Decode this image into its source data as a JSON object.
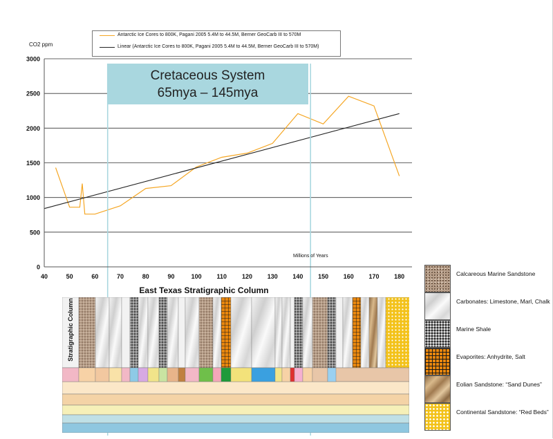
{
  "legend": {
    "series_1": "Antarctic Ice Cores to 800K, Pagani 2005 5.4M to 44.5M, Berner GeoCarb III to 570M",
    "series_2": "Linear (Antarctic Ice Cores to 800K, Pagani 2005 5.4M to 44.5M, Berner GeoCarb III to 570M)"
  },
  "cretaceous": {
    "line1": "Cretaceous System",
    "line2": "65mya – 145mya",
    "color": "#a9d7df"
  },
  "strat": {
    "title": "East Texas Stratigraphic Column",
    "ylabel": "Stratigraphic Column"
  },
  "key": [
    {
      "label": "Calcareous Marine Sandstone",
      "icon": "calcareous-sandstone-swatch",
      "cls": "sw-calc"
    },
    {
      "label": "Carbonates: Limestone, Marl, Chalk",
      "icon": "carbonates-swatch",
      "cls": "sw-carb"
    },
    {
      "label": "Marine Shale",
      "icon": "marine-shale-swatch",
      "cls": "sw-shale"
    },
    {
      "label": "Evaporites: Anhydrite, Salt",
      "icon": "evaporites-swatch",
      "cls": "sw-evap"
    },
    {
      "label": "Eolian Sandstone: “Sand Dunes”",
      "icon": "eolian-sandstone-swatch",
      "cls": "sw-eolian"
    },
    {
      "label": "Continental Sandstone: “Red Beds”",
      "icon": "continental-sandstone-swatch",
      "cls": "sw-cont"
    }
  ],
  "chart_data": {
    "type": "line",
    "ylabel": "CO2 ppm",
    "xlabel": "Millions of Years",
    "xlim": [
      40,
      185
    ],
    "ylim": [
      0,
      3000
    ],
    "xticks": [
      40,
      50,
      60,
      70,
      80,
      90,
      100,
      110,
      120,
      130,
      140,
      150,
      160,
      170,
      180
    ],
    "yticks": [
      0,
      500,
      1000,
      1500,
      2000,
      2500,
      3000
    ],
    "grid": "horizontal",
    "legend_position": "top",
    "series": [
      {
        "name": "Antarctic Ice Cores to 800K, Pagani 2005 5.4M to 44.5M, Berner GeoCarb III to 570M",
        "color": "#f5a623",
        "x": [
          44.5,
          50,
          54,
          55,
          56,
          60,
          70,
          80,
          90,
          100,
          110,
          120,
          130,
          140,
          150,
          160,
          170,
          180
        ],
        "y": [
          1430,
          860,
          860,
          1200,
          760,
          760,
          880,
          1130,
          1170,
          1440,
          1580,
          1640,
          1780,
          2210,
          2060,
          2460,
          2320,
          1310
        ]
      },
      {
        "name": "Linear (Antarctic Ice Cores to 800K, Pagani 2005 5.4M to 44.5M, Berner GeoCarb III to 570M)",
        "color": "#222222",
        "x": [
          40,
          180
        ],
        "y": [
          840,
          2210
        ]
      }
    ],
    "highlight_range": [
      65,
      145
    ]
  }
}
